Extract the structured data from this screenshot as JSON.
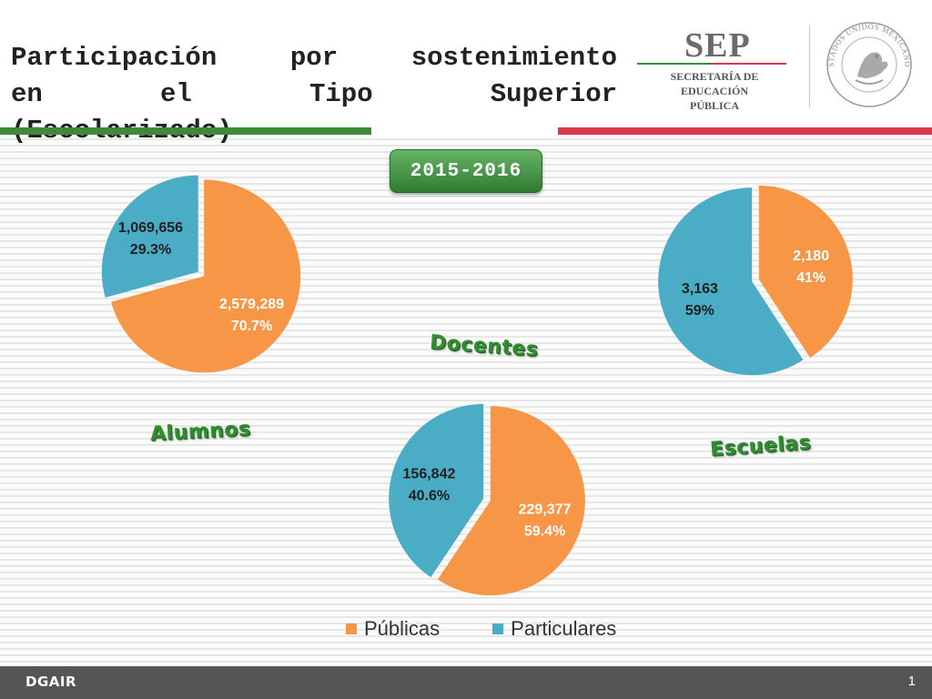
{
  "header": {
    "title_lines": [
      "Participación por sostenimiento",
      "en el Tipo Superior",
      "(Escolarizado)"
    ],
    "logo": {
      "name": "SEP",
      "subtitle_lines": [
        "SECRETARÍA DE",
        "EDUCACIÓN PÚBLICA"
      ],
      "seal_text": "ESTADOS UNIDOS MEXICANOS"
    }
  },
  "year_badge": "2015-2016",
  "legend": {
    "items": [
      {
        "label": "Públicas",
        "color": "#f79646"
      },
      {
        "label": "Particulares",
        "color": "#4bacc6"
      }
    ]
  },
  "chart_data": [
    {
      "type": "pie",
      "title": "Alumnos",
      "categories": [
        "Públicas",
        "Particulares"
      ],
      "values": [
        2579289,
        1069656
      ],
      "value_labels": [
        "2,579,289",
        "1,069,656"
      ],
      "percent_labels": [
        "70.7%",
        "29.3%"
      ],
      "colors": [
        "#f79646",
        "#4bacc6"
      ]
    },
    {
      "type": "pie",
      "title": "Docentes",
      "categories": [
        "Públicas",
        "Particulares"
      ],
      "values": [
        229377,
        156842
      ],
      "value_labels": [
        "229,377",
        "156,842"
      ],
      "percent_labels": [
        "59.4%",
        "40.6%"
      ],
      "colors": [
        "#f79646",
        "#4bacc6"
      ]
    },
    {
      "type": "pie",
      "title": "Escuelas",
      "categories": [
        "Públicas",
        "Particulares"
      ],
      "values": [
        2180,
        3163
      ],
      "value_labels": [
        "2,180",
        "3,163"
      ],
      "percent_labels": [
        "41%",
        "59%"
      ],
      "colors": [
        "#f79646",
        "#4bacc6"
      ]
    }
  ],
  "footer": {
    "left": "DGAIR",
    "page_number": "1"
  }
}
